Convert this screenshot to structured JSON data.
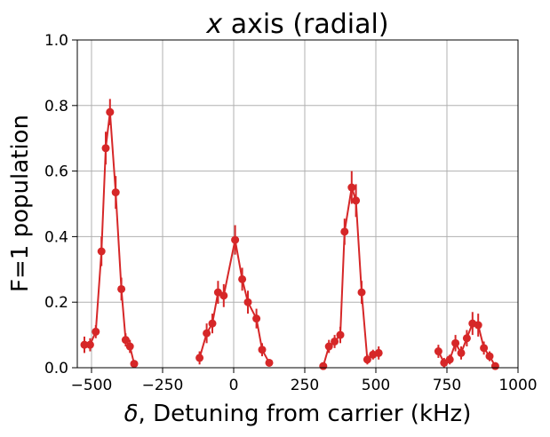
{
  "chart_data": {
    "type": "scatter",
    "title_var": "x",
    "title_rest": " axis (radial)",
    "xlabel_var": "δ",
    "xlabel_rest": ", Detuning from carrier (kHz)",
    "ylabel": "F=1 population",
    "xlim": [
      -550,
      1000
    ],
    "ylim": [
      0.0,
      1.0
    ],
    "x_ticks": [
      -500,
      -250,
      0,
      250,
      500,
      750,
      1000
    ],
    "x_tick_labels": [
      "−500",
      "−250",
      "0",
      "250",
      "500",
      "750",
      "1000"
    ],
    "y_ticks": [
      0.0,
      0.2,
      0.4,
      0.6,
      0.8,
      1.0
    ],
    "y_tick_labels": [
      "0.0",
      "0.2",
      "0.4",
      "0.6",
      "0.8",
      "1.0"
    ],
    "grid": true,
    "color": "#d62728",
    "series": [
      {
        "values": [
          {
            "x": -525,
            "y": 0.07,
            "err": 0.025
          },
          {
            "x": -505,
            "y": 0.07,
            "err": 0.02
          },
          {
            "x": -485,
            "y": 0.11,
            "err": 0.02
          },
          {
            "x": -465,
            "y": 0.355,
            "err": 0.045
          },
          {
            "x": -450,
            "y": 0.67,
            "err": 0.05
          },
          {
            "x": -435,
            "y": 0.78,
            "err": 0.04
          },
          {
            "x": -415,
            "y": 0.535,
            "err": 0.05
          },
          {
            "x": -395,
            "y": 0.24,
            "err": 0.035
          },
          {
            "x": -380,
            "y": 0.085,
            "err": 0.02
          },
          {
            "x": -365,
            "y": 0.065,
            "err": 0.02
          },
          {
            "x": -350,
            "y": 0.012,
            "err": 0.01
          }
        ]
      },
      {
        "values": [
          {
            "x": -120,
            "y": 0.03,
            "err": 0.02
          },
          {
            "x": -95,
            "y": 0.105,
            "err": 0.03
          },
          {
            "x": -75,
            "y": 0.135,
            "err": 0.03
          },
          {
            "x": -55,
            "y": 0.23,
            "err": 0.035
          },
          {
            "x": -35,
            "y": 0.22,
            "err": 0.035
          },
          {
            "x": 5,
            "y": 0.39,
            "err": 0.045
          },
          {
            "x": 30,
            "y": 0.27,
            "err": 0.035
          },
          {
            "x": 50,
            "y": 0.2,
            "err": 0.035
          },
          {
            "x": 80,
            "y": 0.15,
            "err": 0.03
          },
          {
            "x": 100,
            "y": 0.055,
            "err": 0.02
          },
          {
            "x": 125,
            "y": 0.015,
            "err": 0.01
          }
        ]
      },
      {
        "values": [
          {
            "x": 315,
            "y": 0.005,
            "err": 0.01
          },
          {
            "x": 335,
            "y": 0.065,
            "err": 0.02
          },
          {
            "x": 355,
            "y": 0.08,
            "err": 0.02
          },
          {
            "x": 375,
            "y": 0.1,
            "err": 0.025
          },
          {
            "x": 390,
            "y": 0.415,
            "err": 0.04
          },
          {
            "x": 415,
            "y": 0.55,
            "err": 0.05
          },
          {
            "x": 430,
            "y": 0.51,
            "err": 0.05
          },
          {
            "x": 450,
            "y": 0.23,
            "err": 0.035
          },
          {
            "x": 470,
            "y": 0.025,
            "err": 0.015
          },
          {
            "x": 490,
            "y": 0.04,
            "err": 0.015
          },
          {
            "x": 510,
            "y": 0.045,
            "err": 0.02
          }
        ]
      },
      {
        "values": [
          {
            "x": 720,
            "y": 0.05,
            "err": 0.02
          },
          {
            "x": 740,
            "y": 0.015,
            "err": 0.015
          },
          {
            "x": 760,
            "y": 0.025,
            "err": 0.015
          },
          {
            "x": 780,
            "y": 0.075,
            "err": 0.025
          },
          {
            "x": 800,
            "y": 0.045,
            "err": 0.02
          },
          {
            "x": 820,
            "y": 0.09,
            "err": 0.025
          },
          {
            "x": 840,
            "y": 0.135,
            "err": 0.035
          },
          {
            "x": 860,
            "y": 0.13,
            "err": 0.035
          },
          {
            "x": 880,
            "y": 0.06,
            "err": 0.02
          },
          {
            "x": 900,
            "y": 0.035,
            "err": 0.015
          },
          {
            "x": 920,
            "y": 0.005,
            "err": 0.01
          }
        ]
      }
    ]
  }
}
